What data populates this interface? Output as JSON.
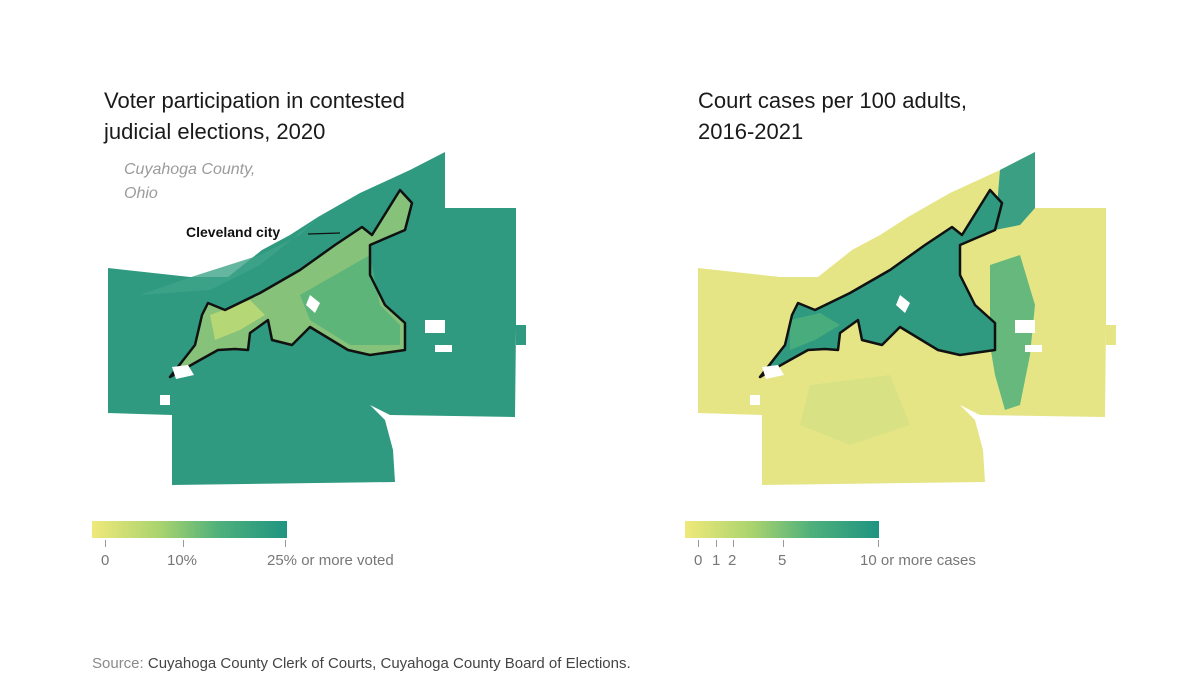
{
  "left_map": {
    "title_line1": "Voter participation in contested",
    "title_line2": "judicial elections, 2020",
    "subtitle_line1": "Cuyahoga County,",
    "subtitle_line2": "Ohio",
    "city_label": "Cleveland city",
    "legend": {
      "labels": [
        "0",
        "10%",
        "25% or more voted"
      ],
      "colors": [
        "#f0e97a",
        "#a9d36e",
        "#4fb07b",
        "#1f9481"
      ]
    },
    "palette": {
      "county_fill": "#2f9a80",
      "city_fill": "#86c27a"
    }
  },
  "right_map": {
    "title_line1": "Court cases per 100 adults,",
    "title_line2": "2016-2021",
    "legend": {
      "labels": [
        "0",
        "1",
        "2",
        "5",
        "10 or more cases"
      ],
      "colors": [
        "#f0e97a",
        "#a9d36e",
        "#4fb07b",
        "#1f9481"
      ]
    },
    "palette": {
      "county_fill": "#e6e586",
      "city_fill": "#2f9a80"
    }
  },
  "source": {
    "prefix": "Source: ",
    "text": "Cuyahoga County Clerk of Courts, Cuyahoga County Board of Elections."
  }
}
